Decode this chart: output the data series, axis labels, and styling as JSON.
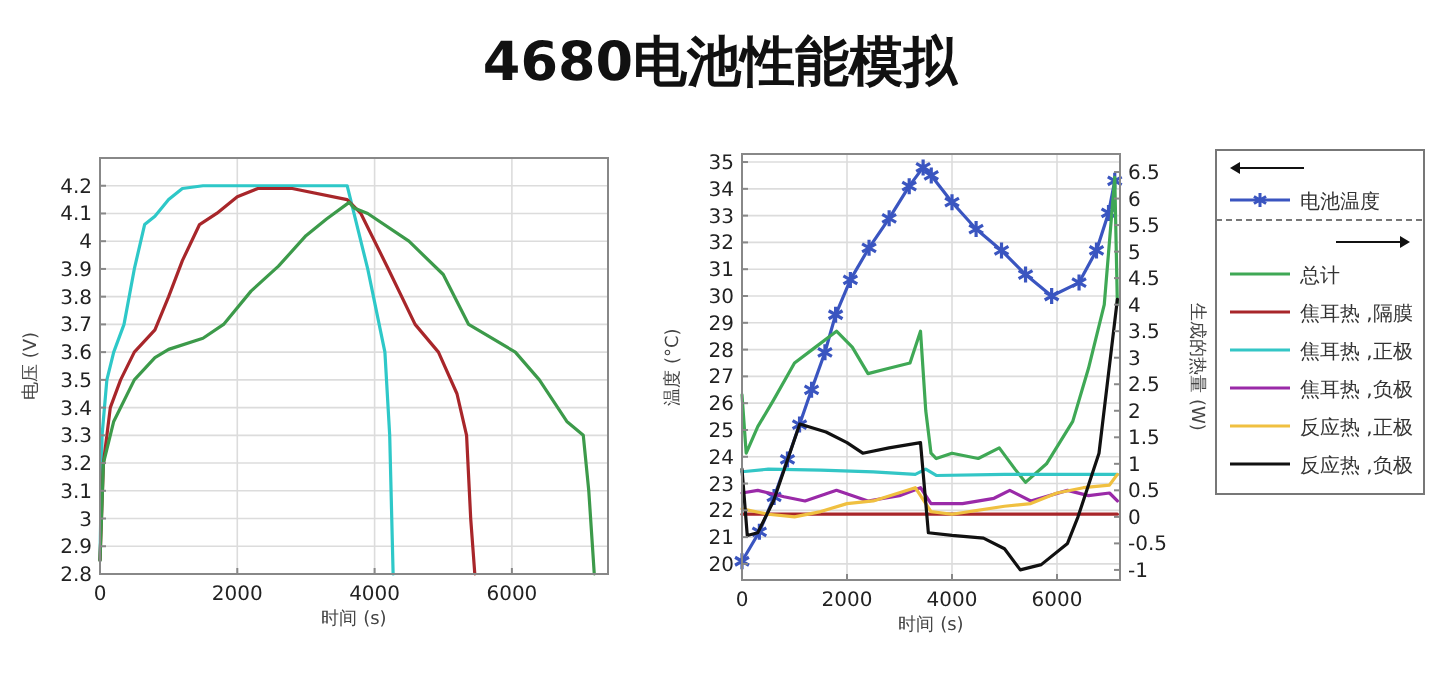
{
  "chart_data": [
    {
      "type": "line",
      "title": "4680电池性能模拟",
      "xlabel": "时间 (s)",
      "ylabel": "电压 (V)",
      "xlim": [
        0,
        7400
      ],
      "xticks": [
        0,
        2000,
        4000,
        6000
      ],
      "ylim": [
        2.8,
        4.3
      ],
      "yticks": [
        2.8,
        2.9,
        3,
        3.1,
        3.2,
        3.3,
        3.4,
        3.5,
        3.6,
        3.7,
        3.8,
        3.9,
        4,
        4.1,
        4.2
      ],
      "grid": true,
      "series": [
        {
          "color": "#2ec8c8",
          "x": [
            0,
            30,
            100,
            200,
            350,
            500,
            650,
            800,
            1000,
            1200,
            1500,
            3600,
            3700,
            3900,
            4150,
            4220,
            4270
          ],
          "values": [
            2.85,
            3.3,
            3.5,
            3.6,
            3.7,
            3.9,
            4.06,
            4.09,
            4.15,
            4.19,
            4.2,
            4.2,
            4.1,
            3.9,
            3.6,
            3.3,
            2.8
          ]
        },
        {
          "color": "#a8262a",
          "x": [
            0,
            50,
            150,
            300,
            500,
            800,
            1000,
            1200,
            1450,
            1700,
            2000,
            2300,
            2800,
            3600,
            3800,
            4200,
            4590,
            4930,
            5200,
            5340,
            5400,
            5460
          ],
          "values": [
            2.85,
            3.2,
            3.4,
            3.5,
            3.6,
            3.68,
            3.8,
            3.93,
            4.06,
            4.1,
            4.16,
            4.19,
            4.19,
            4.15,
            4.1,
            3.9,
            3.7,
            3.6,
            3.45,
            3.3,
            3.0,
            2.8
          ]
        },
        {
          "color": "#3c9a4a",
          "x": [
            0,
            50,
            200,
            500,
            800,
            1000,
            1500,
            1800,
            2200,
            2600,
            3000,
            3300,
            3630,
            3700,
            3900,
            4500,
            5000,
            5370,
            6050,
            6400,
            6800,
            7040,
            7120,
            7200
          ],
          "values": [
            2.85,
            3.2,
            3.35,
            3.5,
            3.58,
            3.61,
            3.65,
            3.7,
            3.82,
            3.91,
            4.02,
            4.08,
            4.14,
            4.12,
            4.1,
            4.0,
            3.88,
            3.7,
            3.6,
            3.5,
            3.35,
            3.3,
            3.1,
            2.8
          ]
        }
      ]
    },
    {
      "type": "line",
      "xlabel": "时间 (s)",
      "ylabel": "温度 (°C)",
      "y2label": "生成的热量 (W)",
      "xlim": [
        0,
        7200
      ],
      "xticks": [
        0,
        2000,
        4000,
        6000
      ],
      "ylim": [
        19.4,
        35.3
      ],
      "yticks": [
        20,
        21,
        22,
        23,
        24,
        25,
        26,
        27,
        28,
        29,
        30,
        31,
        32,
        33,
        34,
        35
      ],
      "y2lim": [
        -1.19,
        6.84
      ],
      "y2ticks": [
        -1,
        -0.5,
        0,
        0.5,
        1,
        1.5,
        2,
        2.5,
        3,
        3.5,
        4,
        4.5,
        5,
        5.5,
        6,
        6.5
      ],
      "grid": true,
      "legend": "right",
      "series": [
        {
          "name": "电池温度",
          "color": "#3a55c0",
          "marker": "cross",
          "x": [
            0,
            331,
            611,
            866,
            1096,
            1325,
            1580,
            1783,
            2064,
            2420,
            2803,
            3185,
            3450,
            3605,
            4000,
            4459,
            4943,
            5401,
            5898,
            6420,
            6752,
            6981,
            7100
          ],
          "values": [
            20.1,
            21.2,
            22.5,
            23.9,
            25.2,
            26.5,
            27.9,
            29.3,
            30.6,
            31.8,
            32.9,
            34.1,
            34.8,
            34.5,
            33.5,
            32.5,
            31.7,
            30.8,
            30.0,
            30.5,
            31.7,
            33.1,
            34.3
          ]
        },
        {
          "name": "总计",
          "color": "#3fa855",
          "axis": "y2",
          "x": [
            0,
            80,
            300,
            600,
            1000,
            1400,
            1800,
            2100,
            2400,
            2800,
            3200,
            3400,
            3500,
            3600,
            3700,
            4000,
            4500,
            4900,
            5200,
            5400,
            5800,
            6300,
            6600,
            6900,
            7100,
            7150
          ],
          "values": [
            2.3,
            1.2,
            1.7,
            2.2,
            2.9,
            3.2,
            3.5,
            3.2,
            2.7,
            2.8,
            2.9,
            3.5,
            2.0,
            1.2,
            1.1,
            1.2,
            1.1,
            1.3,
            0.9,
            0.65,
            1.0,
            1.8,
            2.8,
            4.0,
            6.4,
            4.0
          ]
        },
        {
          "name": "焦耳热 ,隔膜",
          "color": "#a8262a",
          "axis": "y2",
          "x": [
            0,
            3600,
            7150
          ],
          "values": [
            0.05,
            0.05,
            0.05
          ]
        },
        {
          "name": "焦耳热 ,正极",
          "color": "#33c6c6",
          "axis": "y2",
          "x": [
            0,
            500,
            1500,
            2500,
            3300,
            3500,
            3700,
            5000,
            6000,
            7150
          ],
          "values": [
            0.85,
            0.9,
            0.88,
            0.85,
            0.8,
            0.9,
            0.78,
            0.8,
            0.8,
            0.8
          ]
        },
        {
          "name": "焦耳热 ,负极",
          "color": "#9a2aa8",
          "axis": "y2",
          "x": [
            0,
            300,
            800,
            1200,
            1800,
            2400,
            3000,
            3400,
            3600,
            4200,
            4800,
            5100,
            5500,
            6200,
            6600,
            7000,
            7150
          ],
          "values": [
            0.45,
            0.5,
            0.38,
            0.3,
            0.5,
            0.3,
            0.4,
            0.55,
            0.25,
            0.25,
            0.35,
            0.5,
            0.3,
            0.5,
            0.4,
            0.45,
            0.3
          ]
        },
        {
          "name": "反应热 ,正极",
          "color": "#f0c040",
          "axis": "y2",
          "x": [
            0,
            500,
            1000,
            1500,
            2000,
            2500,
            3300,
            3600,
            4000,
            5000,
            5500,
            6000,
            6500,
            7000,
            7150
          ],
          "values": [
            0.15,
            0.05,
            0.0,
            0.1,
            0.25,
            0.3,
            0.55,
            0.1,
            0.05,
            0.2,
            0.25,
            0.45,
            0.55,
            0.6,
            0.8
          ]
        },
        {
          "name": "反应热 ,负极",
          "color": "#111111",
          "axis": "y2",
          "x": [
            0,
            100,
            300,
            600,
            1100,
            1600,
            2000,
            2300,
            2800,
            3400,
            3550,
            4000,
            4600,
            5000,
            5300,
            5700,
            6200,
            6400,
            6800,
            7150
          ],
          "values": [
            0.9,
            -0.35,
            -0.3,
            0.3,
            1.75,
            1.6,
            1.4,
            1.2,
            1.3,
            1.4,
            -0.3,
            -0.35,
            -0.4,
            -0.6,
            -1.0,
            -0.9,
            -0.5,
            0.0,
            1.2,
            4.1
          ]
        }
      ]
    }
  ]
}
